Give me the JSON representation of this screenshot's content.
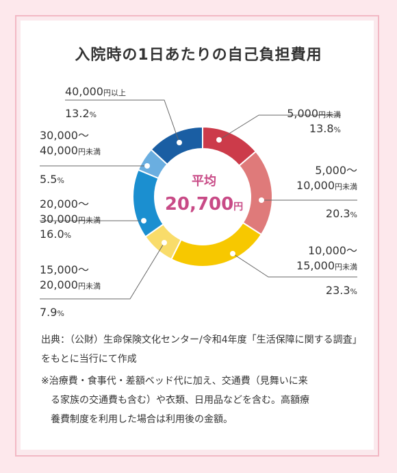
{
  "title": "入院時の1日あたりの自己負担費用",
  "center": {
    "label": "平均",
    "value": "20,700",
    "unit": "円"
  },
  "labels": [
    {
      "key": "s0",
      "lines": [
        {
          "text": "5,000",
          "small": "円未満"
        }
      ],
      "pct": "13.8",
      "unit": "%"
    },
    {
      "key": "s1",
      "lines": [
        {
          "text": "5,000～",
          "small": ""
        },
        {
          "text": "10,000",
          "small": "円未満"
        }
      ],
      "pct": "20.3",
      "unit": "%"
    },
    {
      "key": "s2",
      "lines": [
        {
          "text": "10,000～",
          "small": ""
        },
        {
          "text": "15,000",
          "small": "円未満"
        }
      ],
      "pct": "23.3",
      "unit": "%"
    },
    {
      "key": "s3",
      "lines": [
        {
          "text": "15,000～",
          "small": ""
        },
        {
          "text": "20,000",
          "small": "円未満"
        }
      ],
      "pct": "7.9",
      "unit": "%"
    },
    {
      "key": "s4",
      "lines": [
        {
          "text": "20,000～",
          "small": ""
        },
        {
          "text": "30,000",
          "small": "円未満"
        }
      ],
      "pct": "16.0",
      "unit": "%"
    },
    {
      "key": "s5",
      "lines": [
        {
          "text": "30,000～",
          "small": ""
        },
        {
          "text": "40,000",
          "small": "円未満"
        }
      ],
      "pct": "5.5",
      "unit": "%"
    },
    {
      "key": "s6",
      "lines": [
        {
          "text": "40,000",
          "small": "円以上"
        }
      ],
      "pct": "13.2",
      "unit": "%"
    }
  ],
  "source": "出典：（公財）生命保険文化センター/令和4年度「生活保障に関する調査」をもとに当行にて作成",
  "notes": [
    "※治療費・食事代・差額ベッド代に加え、交通費（見舞いに来",
    "る家族の交通費も含む）や衣類、日用品などを含む。高額療",
    "養費制度を利用した場合は利用後の金額。"
  ],
  "colors": {
    "frame": "#fde8ec",
    "border": "#f2b8c4",
    "accent": "#c84a86"
  },
  "chart_data": {
    "type": "pie",
    "title": "入院時の1日あたりの自己負担費用",
    "categories": [
      "5,000円未満",
      "5,000～10,000円未満",
      "10,000～15,000円未満",
      "15,000～20,000円未満",
      "20,000～30,000円未満",
      "30,000～40,000円未満",
      "40,000円以上"
    ],
    "values": [
      13.8,
      20.3,
      23.3,
      7.9,
      16.0,
      5.5,
      13.2
    ],
    "colors": [
      "#cc3b4a",
      "#df7a7a",
      "#f7c800",
      "#f9dc6a",
      "#1b8fd0",
      "#6aaee0",
      "#1a5ea3"
    ],
    "center_label": "平均 20,700円"
  }
}
